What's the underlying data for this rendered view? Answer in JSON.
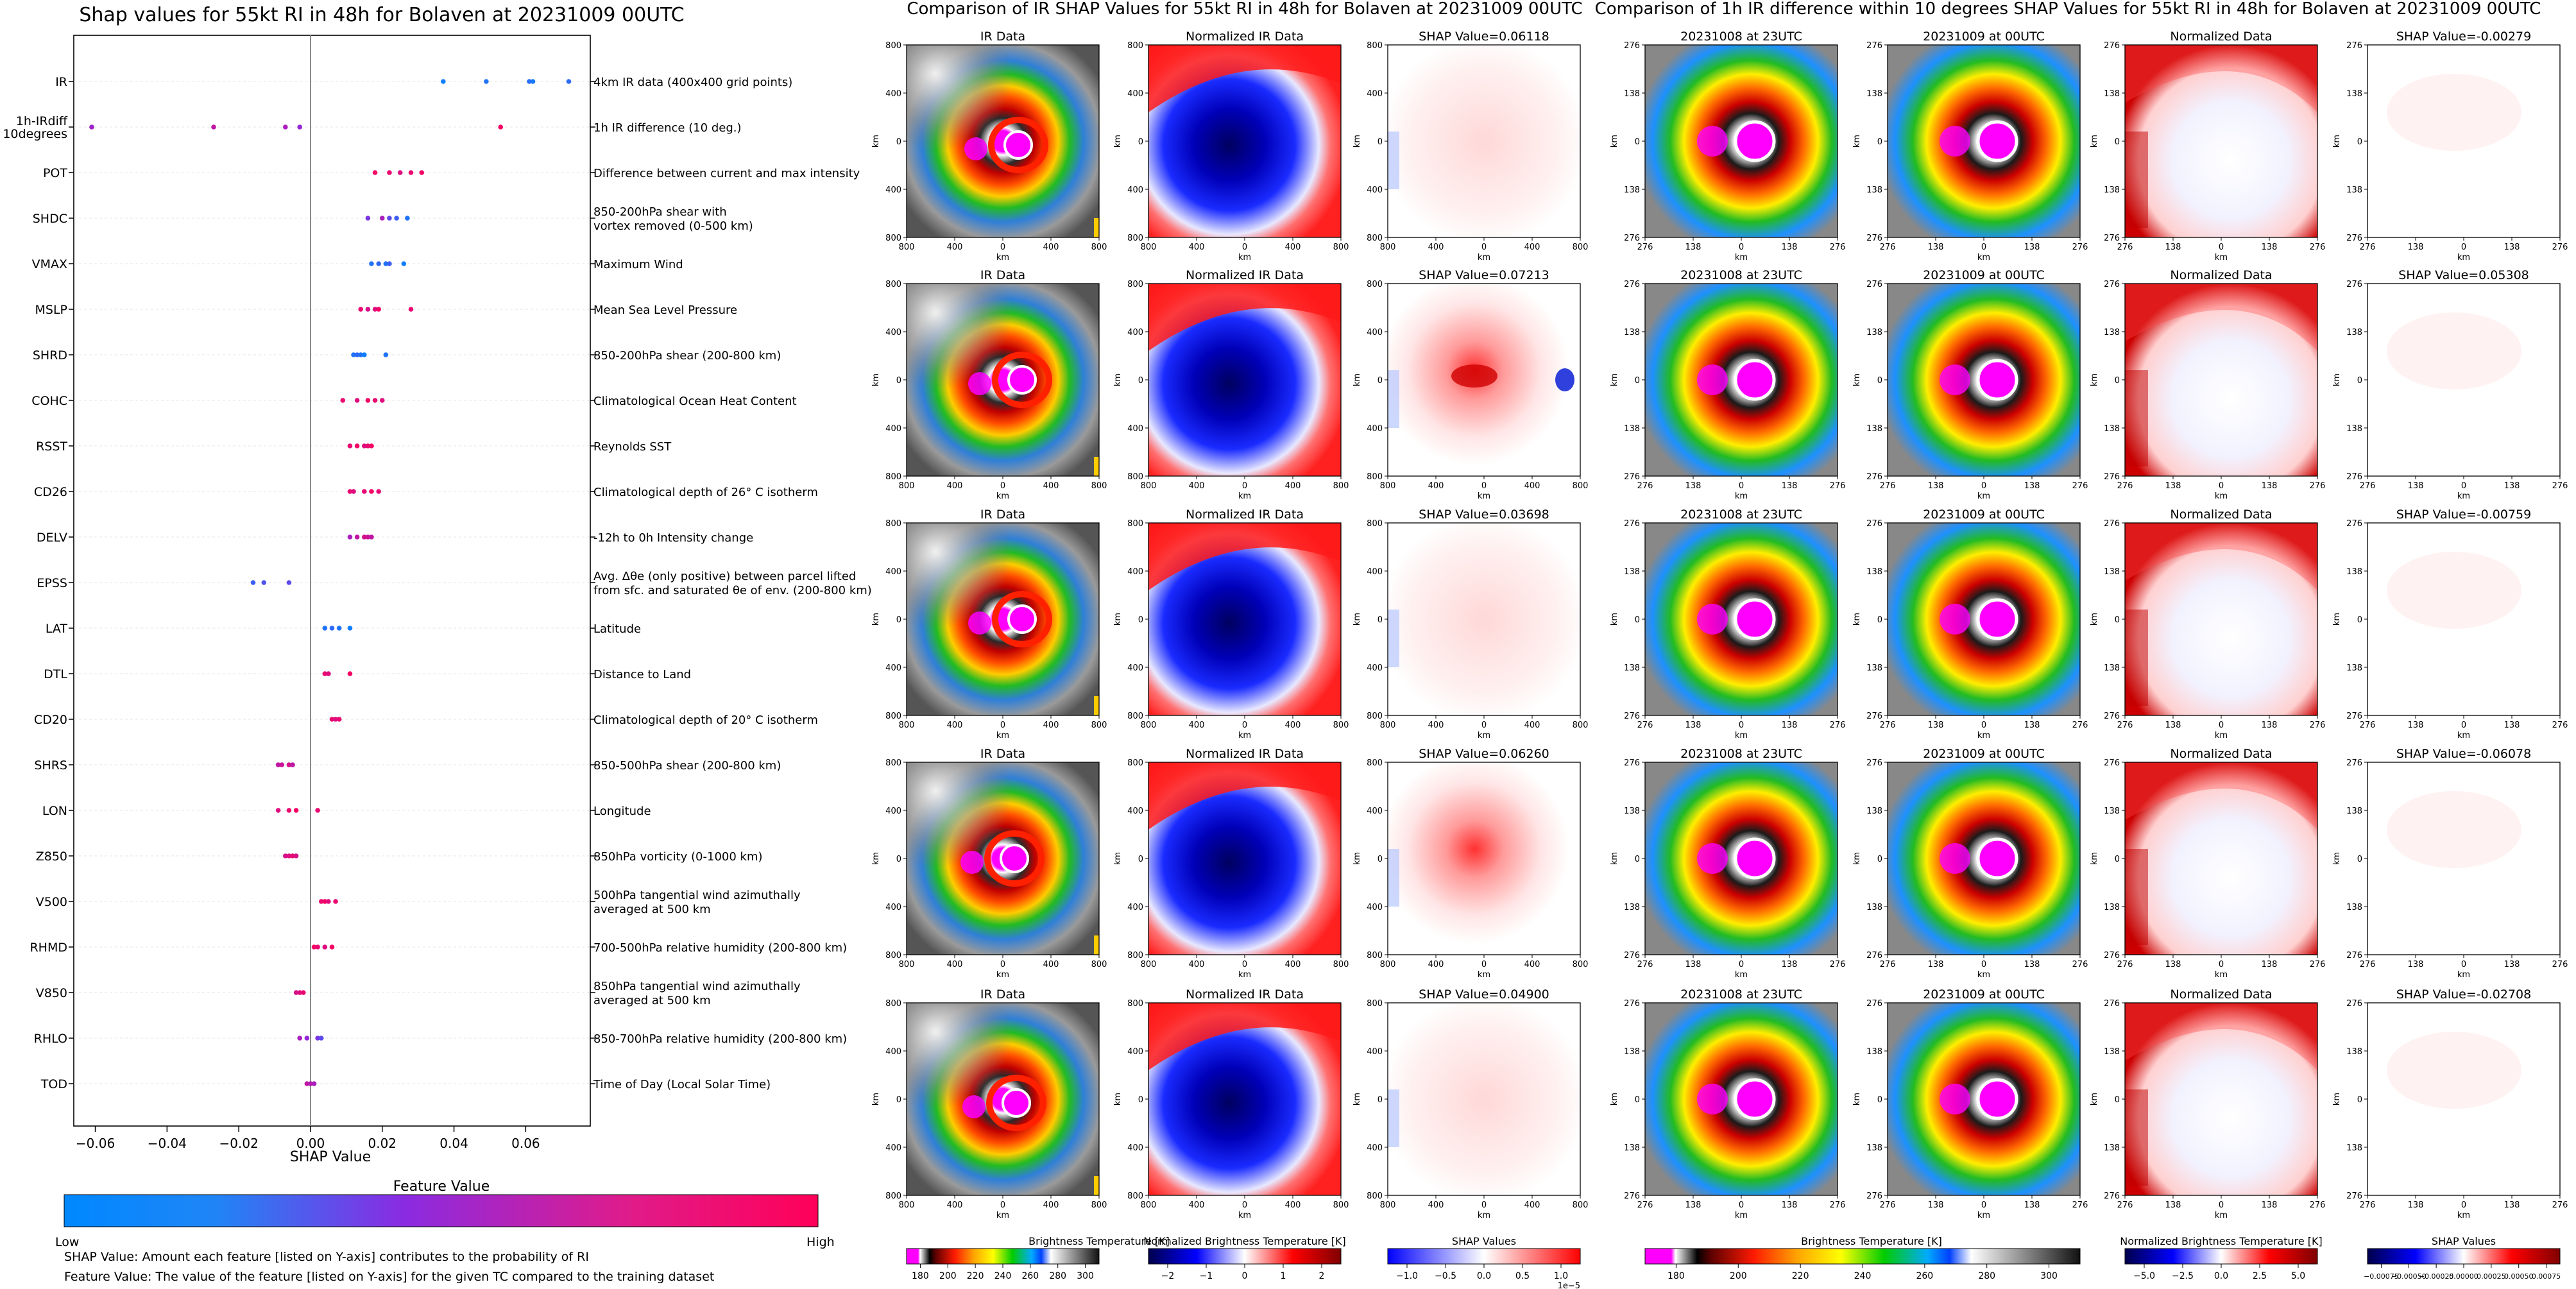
{
  "shap_panel": {
    "title": "Shap values for 55kt RI in 48h for Bolaven at 20231009 00UTC",
    "xlabel": "SHAP Value",
    "colorbar_title": "Feature Value",
    "colorbar_low": "Low",
    "colorbar_high": "High",
    "footnote_1": "SHAP Value: Amount each feature [listed on Y-axis] contributes to the probability of RI",
    "footnote_2": "Feature Value: The value of the feature [listed on Y-axis] for the given TC compared to the training dataset"
  },
  "ir_section": {
    "title": "Comparison of IR SHAP Values for 55kt RI in 48h for Bolaven at 20231009 00UTC",
    "col_titles": [
      "IR Data",
      "Normalized IR Data"
    ],
    "shap_titles": [
      "SHAP Value=0.06118",
      "SHAP Value=0.07213",
      "SHAP Value=0.03698",
      "SHAP Value=0.06260",
      "SHAP Value=0.04900"
    ],
    "tick_labels": [
      "800",
      "400",
      "0",
      "400",
      "800"
    ],
    "axis_label": "km",
    "cb1_label": "Brightness Temperature [K]",
    "cb1_ticks": [
      "180",
      "200",
      "220",
      "240",
      "260",
      "280",
      "300"
    ],
    "cb2_label": "Normalized Brightness Temperature [K]",
    "cb2_ticks": [
      "−2",
      "−1",
      "0",
      "1",
      "2"
    ],
    "cb3_label": "SHAP Values",
    "cb3_ticks": [
      "−1.0",
      "−0.5",
      "0.0",
      "0.5",
      "1.0"
    ],
    "cb3_exponent": "1e−5"
  },
  "diff_section": {
    "title": "Comparison of 1h IR difference within 10 degrees SHAP Values for 55kt RI in 48h for Bolaven at 20231009 00UTC",
    "col_titles": [
      "20231008 at 23UTC",
      "20231009 at 00UTC",
      "Normalized Data"
    ],
    "shap_titles": [
      "SHAP Value=-0.00279",
      "SHAP Value=0.05308",
      "SHAP Value=-0.00759",
      "SHAP Value=-0.06078",
      "SHAP Value=-0.02708"
    ],
    "tick_labels": [
      "276",
      "138",
      "0",
      "138",
      "276"
    ],
    "axis_label": "km",
    "cb1_label": "Brightness Temperature [K]",
    "cb1_ticks": [
      "180",
      "200",
      "220",
      "240",
      "260",
      "280",
      "300"
    ],
    "cb2_label": "Normalized Brightness Temperature [K]",
    "cb2_ticks": [
      "−5.0",
      "−2.5",
      "0.0",
      "2.5",
      "5.0"
    ],
    "cb3_label": "SHAP Values",
    "cb3_ticks": [
      "−0.00075",
      "−0.00050",
      "−0.00025",
      "0.00000",
      "0.00025",
      "0.00050",
      "0.00075"
    ]
  },
  "colors": {
    "low": "#0088ff",
    "mid": "#8a2be2",
    "high": "#ff0058",
    "magenta": "#ff00ff",
    "gridline": "#e6e6e6"
  },
  "chart_data": {
    "type": "scatter",
    "title": "Shap values for 55kt RI in 48h for Bolaven at 20231009 00UTC",
    "xlabel": "SHAP Value",
    "xlim": [
      -0.066,
      0.078
    ],
    "x_ticks": [
      "−0.06",
      "−0.04",
      "−0.02",
      "0.00",
      "0.02",
      "0.04",
      "0.06"
    ],
    "x_tick_values": [
      -0.06,
      -0.04,
      -0.02,
      0.0,
      0.02,
      0.04,
      0.06
    ],
    "features": [
      {
        "name": "IR",
        "desc": "4km IR data (400x400 grid points)",
        "points": [
          [
            0.037,
            0.05
          ],
          [
            0.049,
            0.1
          ],
          [
            0.061,
            0.12
          ],
          [
            0.062,
            0.08
          ],
          [
            0.072,
            0.15
          ]
        ]
      },
      {
        "name": "1h-IRdiff\n10degrees",
        "desc": "1h IR difference (10 deg.)",
        "points": [
          [
            -0.061,
            0.55
          ],
          [
            -0.027,
            0.7
          ],
          [
            -0.007,
            0.6
          ],
          [
            -0.003,
            0.5
          ],
          [
            0.053,
            0.95
          ]
        ]
      },
      {
        "name": "POT",
        "desc": "Difference between current and max intensity",
        "points": [
          [
            0.018,
            0.95
          ],
          [
            0.022,
            0.9
          ],
          [
            0.025,
            0.85
          ],
          [
            0.028,
            0.9
          ],
          [
            0.031,
            0.95
          ]
        ]
      },
      {
        "name": "SHDC",
        "desc": "850-200hPa shear with\nvortex removed (0-500 km)",
        "points": [
          [
            0.016,
            0.4
          ],
          [
            0.02,
            0.6
          ],
          [
            0.022,
            0.3
          ],
          [
            0.024,
            0.2
          ],
          [
            0.027,
            0.1
          ]
        ]
      },
      {
        "name": "VMAX",
        "desc": "Maximum Wind",
        "points": [
          [
            0.017,
            0.1
          ],
          [
            0.019,
            0.15
          ],
          [
            0.021,
            0.1
          ],
          [
            0.022,
            0.2
          ],
          [
            0.026,
            0.05
          ]
        ]
      },
      {
        "name": "MSLP",
        "desc": "Mean Sea Level Pressure",
        "points": [
          [
            0.014,
            0.9
          ],
          [
            0.016,
            0.8
          ],
          [
            0.018,
            0.85
          ],
          [
            0.019,
            0.95
          ],
          [
            0.028,
            0.9
          ]
        ]
      },
      {
        "name": "SHRD",
        "desc": "850-200hPa shear (200-800 km)",
        "points": [
          [
            0.012,
            0.1
          ],
          [
            0.013,
            0.15
          ],
          [
            0.014,
            0.1
          ],
          [
            0.015,
            0.05
          ],
          [
            0.021,
            0.1
          ]
        ]
      },
      {
        "name": "COHC",
        "desc": "Climatological Ocean Heat Content",
        "points": [
          [
            0.009,
            0.9
          ],
          [
            0.013,
            0.85
          ],
          [
            0.016,
            0.95
          ],
          [
            0.018,
            0.9
          ],
          [
            0.02,
            0.85
          ]
        ]
      },
      {
        "name": "RSST",
        "desc": "Reynolds SST",
        "points": [
          [
            0.011,
            0.9
          ],
          [
            0.013,
            0.95
          ],
          [
            0.015,
            0.85
          ],
          [
            0.016,
            0.9
          ],
          [
            0.017,
            0.95
          ]
        ]
      },
      {
        "name": "CD26",
        "desc": "Climatological depth of 26° C isotherm",
        "points": [
          [
            0.011,
            0.9
          ],
          [
            0.012,
            0.85
          ],
          [
            0.015,
            0.9
          ],
          [
            0.017,
            0.95
          ],
          [
            0.019,
            0.9
          ]
        ]
      },
      {
        "name": "DELV",
        "desc": "-12h to 0h Intensity change",
        "points": [
          [
            0.011,
            0.6
          ],
          [
            0.013,
            0.7
          ],
          [
            0.015,
            0.8
          ],
          [
            0.016,
            0.75
          ],
          [
            0.017,
            0.7
          ]
        ]
      },
      {
        "name": "EPSS",
        "desc": "Avg. Δθe (only positive) between parcel lifted\nfrom sfc. and saturated θe of env. (200-800 km)",
        "points": [
          [
            -0.016,
            0.2
          ],
          [
            -0.013,
            0.25
          ],
          [
            -0.006,
            0.3
          ]
        ]
      },
      {
        "name": "LAT",
        "desc": "Latitude",
        "points": [
          [
            0.004,
            0.1
          ],
          [
            0.006,
            0.15
          ],
          [
            0.008,
            0.1
          ],
          [
            0.011,
            0.05
          ]
        ]
      },
      {
        "name": "DTL",
        "desc": "Distance to Land",
        "points": [
          [
            0.004,
            0.9
          ],
          [
            0.005,
            0.85
          ],
          [
            0.011,
            0.95
          ]
        ]
      },
      {
        "name": "CD20",
        "desc": "Climatological depth of 20° C isotherm",
        "points": [
          [
            0.006,
            0.9
          ],
          [
            0.007,
            0.85
          ],
          [
            0.008,
            0.9
          ]
        ]
      },
      {
        "name": "SHRS",
        "desc": "850-500hPa shear (200-800 km)",
        "points": [
          [
            -0.009,
            0.7
          ],
          [
            -0.008,
            0.75
          ],
          [
            -0.006,
            0.8
          ],
          [
            -0.005,
            0.7
          ]
        ]
      },
      {
        "name": "LON",
        "desc": "Longitude",
        "points": [
          [
            -0.009,
            0.85
          ],
          [
            -0.006,
            0.9
          ],
          [
            -0.004,
            0.95
          ],
          [
            0.002,
            0.9
          ]
        ]
      },
      {
        "name": "Z850",
        "desc": "850hPa vorticity (0-1000 km)",
        "points": [
          [
            -0.007,
            0.8
          ],
          [
            -0.006,
            0.85
          ],
          [
            -0.005,
            0.9
          ],
          [
            -0.004,
            0.8
          ]
        ]
      },
      {
        "name": "V500",
        "desc": "500hPa tangential wind azimuthally\naveraged at 500 km",
        "points": [
          [
            0.003,
            0.9
          ],
          [
            0.004,
            0.95
          ],
          [
            0.005,
            0.85
          ],
          [
            0.007,
            0.9
          ]
        ]
      },
      {
        "name": "RHMD",
        "desc": "700-500hPa relative humidity (200-800 km)",
        "points": [
          [
            0.001,
            0.95
          ],
          [
            0.002,
            0.9
          ],
          [
            0.004,
            0.85
          ],
          [
            0.006,
            0.95
          ]
        ]
      },
      {
        "name": "V850",
        "desc": "850hPa tangential wind azimuthally\naveraged at 500 km",
        "points": [
          [
            -0.004,
            0.8
          ],
          [
            -0.003,
            0.85
          ],
          [
            -0.002,
            0.9
          ]
        ]
      },
      {
        "name": "RHLO",
        "desc": "850-700hPa relative humidity (200-800 km)",
        "points": [
          [
            -0.003,
            0.6
          ],
          [
            -0.001,
            0.5
          ],
          [
            0.002,
            0.4
          ],
          [
            0.003,
            0.3
          ]
        ]
      },
      {
        "name": "TOD",
        "desc": "Time of Day (Local Solar Time)",
        "points": [
          [
            -0.001,
            0.7
          ],
          [
            0.0,
            0.65
          ],
          [
            0.001,
            0.6
          ]
        ]
      }
    ]
  }
}
